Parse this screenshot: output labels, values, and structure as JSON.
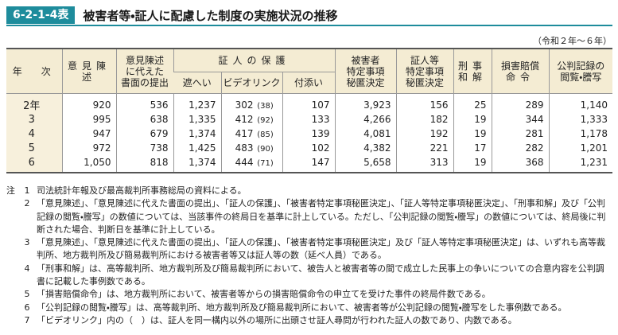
{
  "header": {
    "badge": "6-2-1-4表",
    "title": "被害者等・証人に配慮した制度の実施状況の推移"
  },
  "unit_note": "（令和２年～６年）",
  "table": {
    "head": {
      "before": [
        [
          "年　次"
        ],
        [
          "意見陳述"
        ],
        [
          "意見陳述",
          "に代えた",
          "書面の提出"
        ]
      ],
      "group": "証人の保護",
      "group_cols": [
        "遮へい",
        "ビデオリンク",
        "付添い"
      ],
      "after": [
        [
          "被害者",
          "特定事項",
          "秘匿決定"
        ],
        [
          "証人等",
          "特定事項",
          "秘匿決定"
        ],
        [
          "刑事",
          "和解"
        ],
        [
          "損害賠償",
          "命令"
        ],
        [
          "公判記録の",
          "閲覧・謄写"
        ]
      ]
    },
    "rows": [
      {
        "year": "2年",
        "cells": [
          "920",
          "536",
          "1,237",
          [
            "302",
            "(38)"
          ],
          "107",
          "3,923",
          "156",
          "25",
          "289",
          "1,140"
        ]
      },
      {
        "year": "3",
        "cells": [
          "995",
          "638",
          "1,335",
          [
            "412",
            "(92)"
          ],
          "133",
          "4,266",
          "182",
          "19",
          "344",
          "1,333"
        ]
      },
      {
        "year": "4",
        "cells": [
          "947",
          "679",
          "1,374",
          [
            "417",
            "(85)"
          ],
          "139",
          "4,081",
          "192",
          "19",
          "281",
          "1,178"
        ]
      },
      {
        "year": "5",
        "cells": [
          "972",
          "738",
          "1,425",
          [
            "483",
            "(90)"
          ],
          "102",
          "4,382",
          "221",
          "17",
          "282",
          "1,201"
        ]
      },
      {
        "year": "6",
        "cells": [
          "1,050",
          "818",
          "1,374",
          [
            "444",
            "(71)"
          ],
          "147",
          "5,658",
          "313",
          "19",
          "368",
          "1,231"
        ]
      }
    ]
  },
  "notes": {
    "label": "注",
    "items": [
      {
        "num": "1",
        "text": "司法統計年報及び最高裁判所事務総局の資料による。"
      },
      {
        "num": "2",
        "text": "「意見陳述」、「意見陳述に代えた書面の提出」、「証人の保護」、「被害者特定事項秘匿決定」、「証人等特定事項秘匿決定」、「刑事和解」及び「公判記録の閲覧・謄写」の数値については、当該事件の終局日を基準に計上している。ただし、「公判記録の閲覧・謄写」の数値については、終局後に判断された場合、判断日を基準に計上している。"
      },
      {
        "num": "3",
        "text": "「意見陳述」、「意見陳述に代えた書面の提出」、「証人の保護」、「被害者特定事項秘匿決定」及び「証人等特定事項秘匿決定」は、いずれも高等裁判所、地方裁判所及び簡易裁判所における被害者等又は証人等の数（延べ人員）である。"
      },
      {
        "num": "4",
        "text": "「刑事和解」は、高等裁判所、地方裁判所及び簡易裁判所において、被告人と被害者等の間で成立した民事上の争いについての合意内容を公判調書に記載した事例数である。"
      },
      {
        "num": "5",
        "text": "「損害賠償命令」は、地方裁判所において、被害者等からの損害賠償命令の申立てを受けた事件の終局件数である。"
      },
      {
        "num": "6",
        "text": "「公判記録の閲覧・謄写」は、高等裁判所、地方裁判所及び簡易裁判所において、被害者等が公判記録の閲覧・謄写をした事例数である。"
      },
      {
        "num": "7",
        "text": "「ビデオリンク」内の（　）は、証人を同一構内以外の場所に出頭させ証人尋問が行われた証人の数であり、内数である。"
      }
    ]
  }
}
